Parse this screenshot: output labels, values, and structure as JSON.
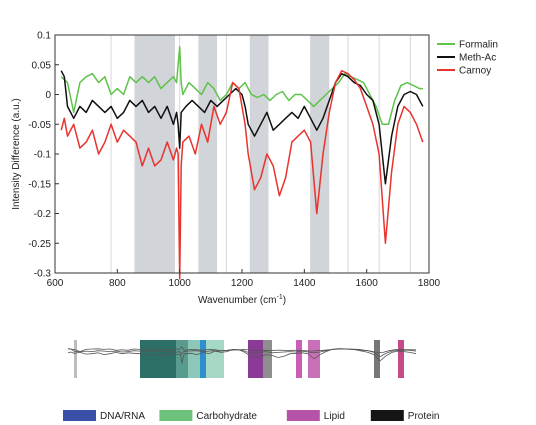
{
  "chart_data": {
    "type": "line",
    "xlabel": "Wavenumber (cm",
    "xlabel_sup": "-1",
    "xlabel_end": ")",
    "ylabel": "Intensity Difference (a.u.)",
    "xlim": [
      600,
      1800
    ],
    "ylim": [
      -0.3,
      0.1
    ],
    "xticks": [
      "600",
      "800",
      "1000",
      "1200",
      "1400",
      "1600",
      "1800"
    ],
    "yticks": [
      "0.1",
      "0.05",
      "0",
      "-0.05",
      "-0.1",
      "-0.15",
      "-0.2",
      "-0.25",
      "-0.3"
    ],
    "legend_placement": "top-right",
    "grid": false,
    "series": [
      {
        "name": "Formalin",
        "color": "#5fc24a",
        "points": [
          [
            620,
            0.03
          ],
          [
            640,
            0.02
          ],
          [
            660,
            -0.03
          ],
          [
            680,
            0.02
          ],
          [
            700,
            0.03
          ],
          [
            720,
            0.035
          ],
          [
            740,
            0.02
          ],
          [
            760,
            0.03
          ],
          [
            780,
            0.0
          ],
          [
            800,
            0.01
          ],
          [
            820,
            0.0
          ],
          [
            840,
            0.03
          ],
          [
            860,
            0.02
          ],
          [
            880,
            0.03
          ],
          [
            900,
            0.02
          ],
          [
            920,
            0.03
          ],
          [
            940,
            0.01
          ],
          [
            960,
            0.02
          ],
          [
            980,
            0.03
          ],
          [
            990,
            0.02
          ],
          [
            995,
            0.05
          ],
          [
            1000,
            0.08
          ],
          [
            1005,
            0.02
          ],
          [
            1010,
            0.0
          ],
          [
            1030,
            0.02
          ],
          [
            1050,
            0.01
          ],
          [
            1070,
            0.0
          ],
          [
            1090,
            0.02
          ],
          [
            1110,
            0.01
          ],
          [
            1130,
            -0.01
          ],
          [
            1150,
            0.0
          ],
          [
            1170,
            0.02
          ],
          [
            1190,
            0.01
          ],
          [
            1210,
            0.02
          ],
          [
            1230,
            0.0
          ],
          [
            1250,
            -0.005
          ],
          [
            1270,
            0.0
          ],
          [
            1290,
            -0.01
          ],
          [
            1310,
            0.0
          ],
          [
            1330,
            0.005
          ],
          [
            1350,
            -0.01
          ],
          [
            1370,
            0.0
          ],
          [
            1390,
            0.0
          ],
          [
            1410,
            -0.01
          ],
          [
            1430,
            -0.02
          ],
          [
            1450,
            -0.01
          ],
          [
            1470,
            0.0
          ],
          [
            1490,
            0.01
          ],
          [
            1510,
            0.02
          ],
          [
            1530,
            0.035
          ],
          [
            1550,
            0.03
          ],
          [
            1570,
            0.025
          ],
          [
            1590,
            0.02
          ],
          [
            1610,
            0.0
          ],
          [
            1630,
            -0.02
          ],
          [
            1650,
            -0.05
          ],
          [
            1670,
            -0.05
          ],
          [
            1690,
            -0.01
          ],
          [
            1710,
            0.015
          ],
          [
            1730,
            0.02
          ],
          [
            1750,
            0.015
          ],
          [
            1770,
            0.01
          ],
          [
            1780,
            0.01
          ]
        ]
      },
      {
        "name": "Meth-Ac",
        "color": "#111111",
        "points": [
          [
            620,
            0.04
          ],
          [
            630,
            0.03
          ],
          [
            640,
            -0.02
          ],
          [
            660,
            -0.04
          ],
          [
            680,
            -0.02
          ],
          [
            700,
            -0.03
          ],
          [
            720,
            -0.01
          ],
          [
            740,
            -0.02
          ],
          [
            760,
            -0.03
          ],
          [
            780,
            -0.02
          ],
          [
            800,
            -0.04
          ],
          [
            820,
            -0.03
          ],
          [
            840,
            -0.01
          ],
          [
            860,
            -0.02
          ],
          [
            880,
            -0.01
          ],
          [
            900,
            -0.03
          ],
          [
            920,
            -0.02
          ],
          [
            940,
            -0.04
          ],
          [
            960,
            -0.02
          ],
          [
            980,
            -0.05
          ],
          [
            990,
            -0.03
          ],
          [
            995,
            -0.05
          ],
          [
            1000,
            -0.09
          ],
          [
            1005,
            -0.03
          ],
          [
            1020,
            -0.02
          ],
          [
            1040,
            -0.01
          ],
          [
            1060,
            -0.02
          ],
          [
            1080,
            -0.03
          ],
          [
            1100,
            -0.01
          ],
          [
            1120,
            -0.02
          ],
          [
            1140,
            -0.01
          ],
          [
            1160,
            0.0
          ],
          [
            1180,
            0.01
          ],
          [
            1200,
            0.0
          ],
          [
            1210,
            -0.02
          ],
          [
            1220,
            -0.05
          ],
          [
            1240,
            -0.07
          ],
          [
            1260,
            -0.05
          ],
          [
            1280,
            -0.03
          ],
          [
            1300,
            -0.06
          ],
          [
            1320,
            -0.05
          ],
          [
            1340,
            -0.04
          ],
          [
            1360,
            -0.03
          ],
          [
            1380,
            -0.04
          ],
          [
            1400,
            -0.02
          ],
          [
            1420,
            -0.04
          ],
          [
            1440,
            -0.06
          ],
          [
            1460,
            -0.04
          ],
          [
            1480,
            -0.01
          ],
          [
            1500,
            0.02
          ],
          [
            1520,
            0.035
          ],
          [
            1540,
            0.03
          ],
          [
            1560,
            0.02
          ],
          [
            1580,
            0.015
          ],
          [
            1600,
            0.0
          ],
          [
            1620,
            -0.01
          ],
          [
            1640,
            -0.05
          ],
          [
            1660,
            -0.15
          ],
          [
            1680,
            -0.07
          ],
          [
            1700,
            -0.02
          ],
          [
            1720,
            0.0
          ],
          [
            1740,
            0.005
          ],
          [
            1760,
            0.0
          ],
          [
            1780,
            -0.02
          ]
        ]
      },
      {
        "name": "Carnoy",
        "color": "#e8332e",
        "points": [
          [
            620,
            -0.06
          ],
          [
            630,
            -0.04
          ],
          [
            640,
            -0.07
          ],
          [
            660,
            -0.05
          ],
          [
            680,
            -0.09
          ],
          [
            700,
            -0.08
          ],
          [
            720,
            -0.06
          ],
          [
            740,
            -0.1
          ],
          [
            760,
            -0.08
          ],
          [
            780,
            -0.05
          ],
          [
            800,
            -0.08
          ],
          [
            820,
            -0.06
          ],
          [
            840,
            -0.07
          ],
          [
            860,
            -0.08
          ],
          [
            880,
            -0.12
          ],
          [
            900,
            -0.09
          ],
          [
            920,
            -0.12
          ],
          [
            940,
            -0.11
          ],
          [
            960,
            -0.08
          ],
          [
            980,
            -0.11
          ],
          [
            990,
            -0.09
          ],
          [
            995,
            -0.1
          ],
          [
            1000,
            -0.31
          ],
          [
            1005,
            -0.12
          ],
          [
            1010,
            -0.08
          ],
          [
            1030,
            -0.07
          ],
          [
            1050,
            -0.1
          ],
          [
            1070,
            -0.05
          ],
          [
            1090,
            -0.08
          ],
          [
            1110,
            -0.02
          ],
          [
            1130,
            -0.05
          ],
          [
            1150,
            -0.03
          ],
          [
            1170,
            0.02
          ],
          [
            1190,
            0.01
          ],
          [
            1210,
            -0.05
          ],
          [
            1220,
            -0.1
          ],
          [
            1240,
            -0.16
          ],
          [
            1260,
            -0.14
          ],
          [
            1280,
            -0.1
          ],
          [
            1300,
            -0.12
          ],
          [
            1320,
            -0.17
          ],
          [
            1340,
            -0.14
          ],
          [
            1360,
            -0.08
          ],
          [
            1380,
            -0.07
          ],
          [
            1400,
            -0.06
          ],
          [
            1420,
            -0.08
          ],
          [
            1440,
            -0.2
          ],
          [
            1460,
            -0.1
          ],
          [
            1480,
            -0.03
          ],
          [
            1500,
            0.02
          ],
          [
            1520,
            0.04
          ],
          [
            1540,
            0.035
          ],
          [
            1560,
            0.025
          ],
          [
            1580,
            0.01
          ],
          [
            1600,
            -0.02
          ],
          [
            1620,
            -0.05
          ],
          [
            1640,
            -0.1
          ],
          [
            1660,
            -0.25
          ],
          [
            1680,
            -0.13
          ],
          [
            1700,
            -0.05
          ],
          [
            1720,
            -0.02
          ],
          [
            1740,
            -0.03
          ],
          [
            1760,
            -0.05
          ],
          [
            1780,
            -0.08
          ]
        ]
      }
    ],
    "shaded_bands": [
      [
        855,
        985
      ],
      [
        1060,
        1120
      ],
      [
        1225,
        1285
      ],
      [
        1420,
        1480
      ]
    ],
    "secondary_legend": [
      {
        "name": "DNA/RNA",
        "color": "#3a4fa8"
      },
      {
        "name": "Carbohydrate",
        "color": "#6cc27a"
      },
      {
        "name": "Lipid",
        "color": "#b553a8"
      },
      {
        "name": "Protein",
        "color": "#151515"
      }
    ],
    "thumbnail_bands": [
      {
        "from": 640,
        "to": 650,
        "color": "#bcbcbc"
      },
      {
        "from": 860,
        "to": 980,
        "color": "#2b6f66"
      },
      {
        "from": 980,
        "to": 1020,
        "color": "#5a9b8f"
      },
      {
        "from": 1020,
        "to": 1060,
        "color": "#8cc7b8"
      },
      {
        "from": 1060,
        "to": 1080,
        "color": "#2e8fcf"
      },
      {
        "from": 1080,
        "to": 1140,
        "color": "#a6d9c5"
      },
      {
        "from": 1220,
        "to": 1270,
        "color": "#8a3b96"
      },
      {
        "from": 1270,
        "to": 1300,
        "color": "#8e8e8e"
      },
      {
        "from": 1380,
        "to": 1400,
        "color": "#c95eb6"
      },
      {
        "from": 1420,
        "to": 1460,
        "color": "#c970b8"
      },
      {
        "from": 1640,
        "to": 1660,
        "color": "#777777"
      },
      {
        "from": 1720,
        "to": 1740,
        "color": "#c64a8a"
      }
    ]
  }
}
